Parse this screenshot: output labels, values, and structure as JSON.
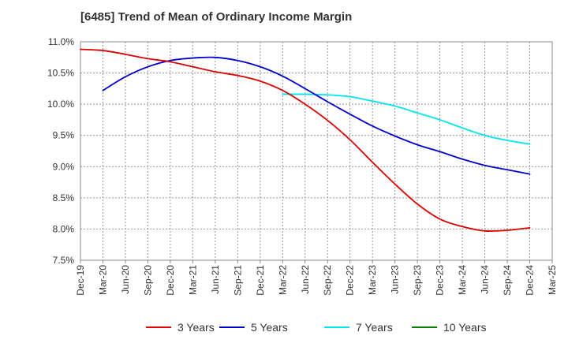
{
  "chart_data": {
    "type": "line",
    "title": "[6485]  Trend of Mean of Ordinary Income Margin",
    "xlabel": "",
    "ylabel": "",
    "x_labels": [
      "Dec-19",
      "Mar-20",
      "Jun-20",
      "Sep-20",
      "Dec-20",
      "Mar-21",
      "Jun-21",
      "Sep-21",
      "Dec-21",
      "Mar-22",
      "Jun-22",
      "Sep-22",
      "Dec-22",
      "Mar-23",
      "Jun-23",
      "Sep-23",
      "Dec-23",
      "Mar-24",
      "Jun-24",
      "Sep-24",
      "Dec-24",
      "Mar-25"
    ],
    "y_ticks": [
      "11.0%",
      "10.5%",
      "10.0%",
      "9.5%",
      "9.0%",
      "8.5%",
      "8.0%",
      "7.5%"
    ],
    "ylim": [
      7.5,
      11.0
    ],
    "grid": true,
    "legend_position": "bottom",
    "series": [
      {
        "name": "3 Years",
        "color": "#dd0000",
        "values": [
          10.88,
          10.86,
          10.8,
          10.73,
          10.68,
          10.6,
          10.52,
          10.46,
          10.37,
          10.22,
          10.0,
          9.74,
          9.43,
          9.07,
          8.72,
          8.4,
          8.16,
          8.04,
          7.97,
          7.98,
          8.02,
          null
        ]
      },
      {
        "name": "5 Years",
        "color": "#0000cc",
        "values": [
          null,
          10.22,
          10.44,
          10.6,
          10.7,
          10.74,
          10.75,
          10.7,
          10.6,
          10.45,
          10.25,
          10.04,
          9.84,
          9.65,
          9.49,
          9.35,
          9.24,
          9.12,
          9.02,
          8.95,
          8.88,
          null
        ]
      },
      {
        "name": "7 Years",
        "color": "#00e5ee",
        "values": [
          null,
          null,
          null,
          null,
          null,
          null,
          null,
          null,
          null,
          10.16,
          10.16,
          10.15,
          10.12,
          10.05,
          9.97,
          9.86,
          9.75,
          9.62,
          9.5,
          9.42,
          9.36,
          null
        ]
      },
      {
        "name": "10 Years",
        "color": "#008000",
        "values": [
          null,
          null,
          null,
          null,
          null,
          null,
          null,
          null,
          null,
          null,
          null,
          null,
          null,
          null,
          null,
          null,
          null,
          null,
          null,
          null,
          null,
          null
        ]
      }
    ]
  }
}
